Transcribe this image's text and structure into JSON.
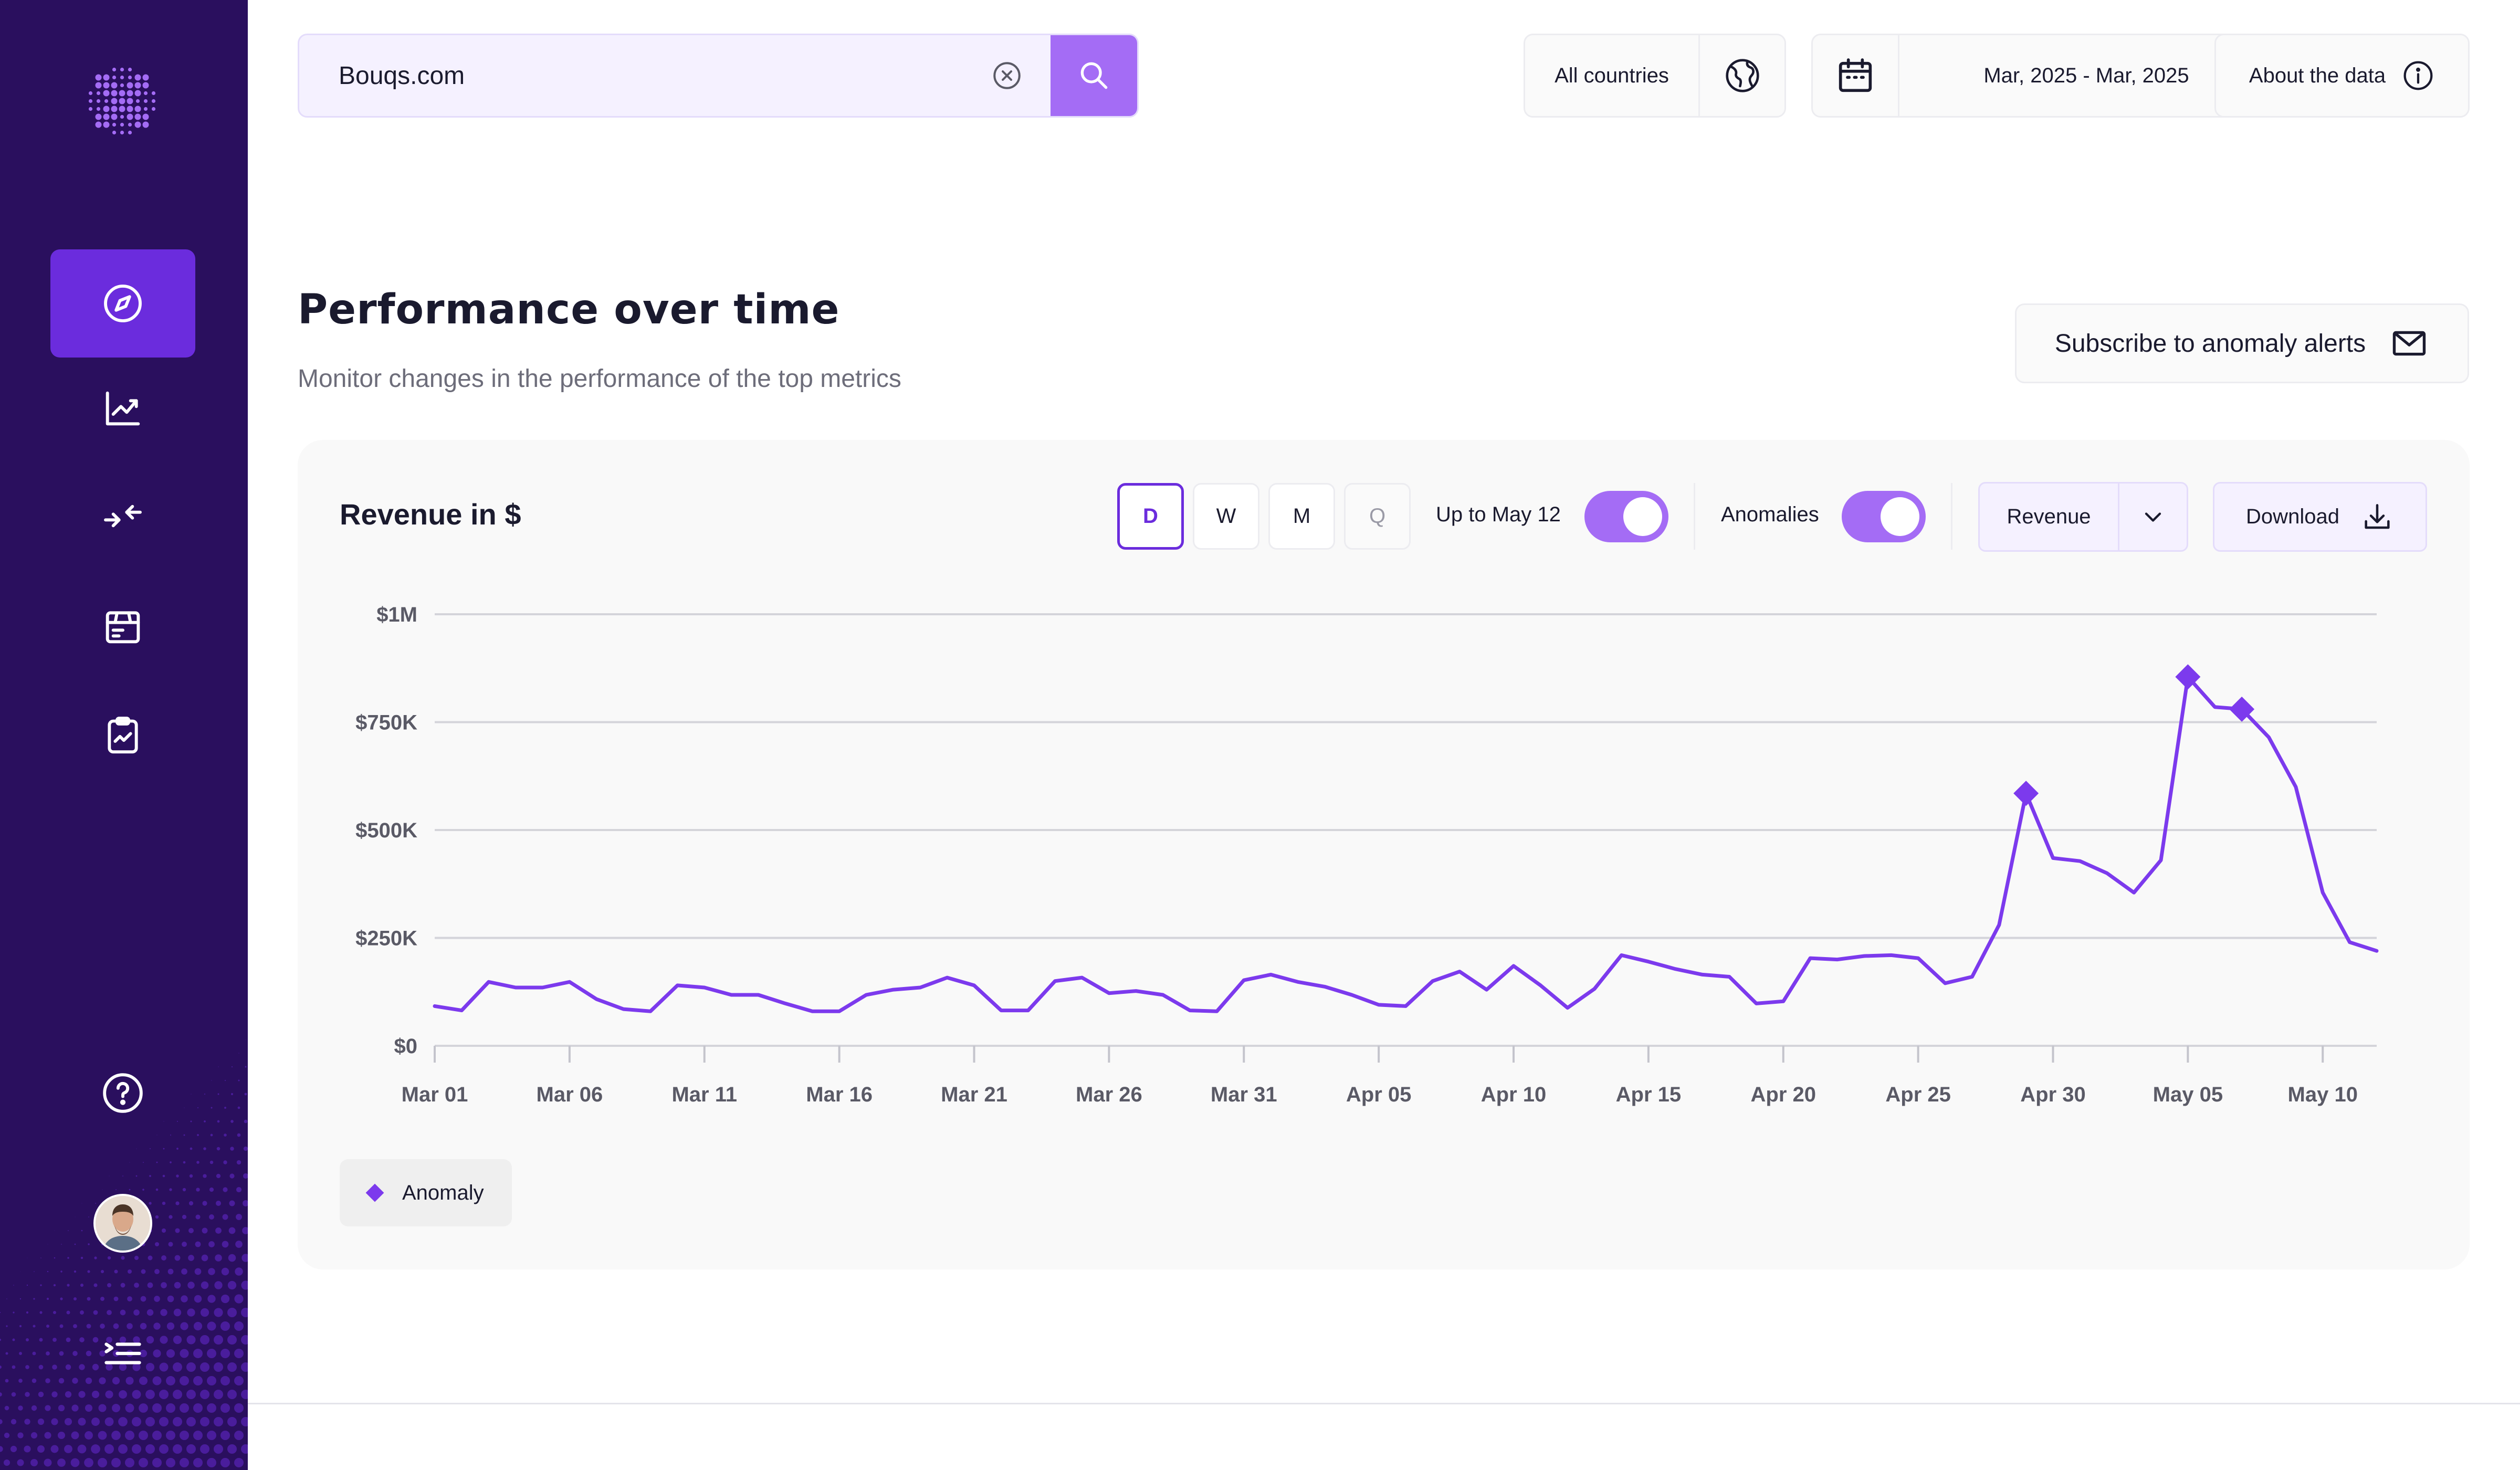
{
  "search": {
    "value": "Bouqs.com"
  },
  "filters": {
    "country": "All countries",
    "date_range": "Mar, 2025 - Mar, 2025",
    "about": "About the data"
  },
  "section": {
    "title": "Performance over time",
    "subtitle": "Monitor changes in the performance of the top metrics",
    "subscribe": "Subscribe to anomaly alerts"
  },
  "card": {
    "title": "Revenue in $",
    "granularity": [
      "D",
      "W",
      "M",
      "Q"
    ],
    "active_granularity": "D",
    "up_to_label": "Up to May 12",
    "up_to_enabled": true,
    "anomalies_label": "Anomalies",
    "anomalies_enabled": true,
    "metric": "Revenue",
    "download": "Download",
    "legend": "Anomaly"
  },
  "colors": {
    "sidebar": "#2a0f5e",
    "accent": "#6b2cdd",
    "accent_light": "#a46cf5",
    "line": "#7c3aed"
  },
  "icons": {
    "nav": [
      "compass-icon",
      "trend-chart-icon",
      "compare-arrows-icon",
      "package-icon",
      "clipboard-chart-icon"
    ],
    "bottom": [
      "help-icon",
      "avatar",
      "collapse-menu-icon"
    ]
  },
  "chart_data": {
    "type": "line",
    "title": "",
    "xlabel": "",
    "ylabel": "",
    "ylim": [
      0,
      1000000
    ],
    "y_ticks": [
      {
        "value": 0,
        "label": "$0"
      },
      {
        "value": 250000,
        "label": "$250K"
      },
      {
        "value": 500000,
        "label": "$500K"
      },
      {
        "value": 750000,
        "label": "$750K"
      },
      {
        "value": 1000000,
        "label": "$1M"
      }
    ],
    "x_ticks": [
      "Mar 01",
      "Mar 06",
      "Mar 11",
      "Mar 16",
      "Mar 21",
      "Mar 26",
      "Mar 31",
      "Apr 05",
      "Apr 10",
      "Apr 15",
      "Apr 20",
      "Apr 25",
      "Apr 30",
      "May 05",
      "May 10"
    ],
    "x_start": "Mar 01",
    "grid": true,
    "legend": "bottom-left",
    "series": [
      {
        "values": [
          92000,
          82000,
          148000,
          135000,
          135000,
          148000,
          108000,
          85000,
          80000,
          140000,
          135000,
          118000,
          118000,
          98000,
          80000,
          80000,
          118000,
          130000,
          135000,
          158000,
          140000,
          82000,
          82000,
          150000,
          158000,
          122000,
          127000,
          118000,
          82000,
          80000,
          152000,
          165000,
          148000,
          137000,
          118000,
          95000,
          92000,
          150000,
          172000,
          130000,
          185000,
          140000,
          88000,
          132000,
          210000,
          195000,
          178000,
          165000,
          160000,
          98000,
          103000,
          203000,
          200000,
          208000,
          210000,
          203000,
          145000,
          160000,
          280000,
          585000,
          435000,
          428000,
          400000,
          355000,
          430000,
          855000,
          785000,
          780000,
          715000,
          600000,
          355000,
          240000,
          220000
        ]
      }
    ],
    "anomalies": [
      {
        "x": "Apr 29",
        "value": 585000
      },
      {
        "x": "May 05",
        "value": 855000
      },
      {
        "x": "May 07",
        "value": 780000
      }
    ]
  }
}
